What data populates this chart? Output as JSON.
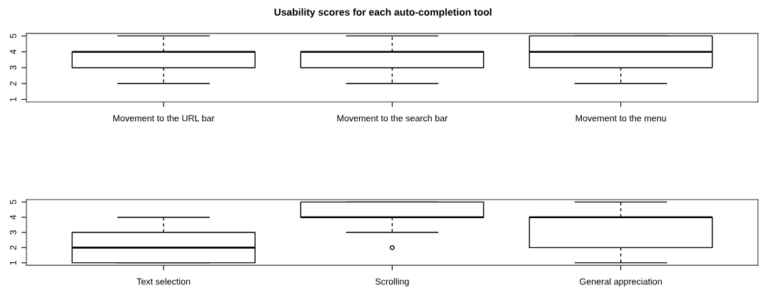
{
  "chart_data": [
    {
      "type": "box",
      "title": "Usability scores for each auto-completion tool",
      "categories": [
        "Movement to the URL bar",
        "Movement to the search bar",
        "Movement to the menu"
      ],
      "boxes": [
        {
          "low": 2,
          "q1": 3,
          "median": 4,
          "q3": 4,
          "high": 5
        },
        {
          "low": 2,
          "q1": 3,
          "median": 4,
          "q3": 4,
          "high": 5
        },
        {
          "low": 2,
          "q1": 3,
          "median": 4,
          "q3": 5,
          "high": 5
        }
      ],
      "ylim": [
        0.84,
        5.16
      ],
      "yticks": [
        1,
        2,
        3,
        4,
        5
      ],
      "grid": false,
      "legend": false
    },
    {
      "type": "box",
      "categories": [
        "Text selection",
        "Scrolling",
        "General appreciation"
      ],
      "boxes": [
        {
          "low": 1,
          "q1": 1,
          "median": 2,
          "q3": 3,
          "high": 4
        },
        {
          "low": 3,
          "q1": 4,
          "median": 4,
          "q3": 5,
          "high": 5,
          "outliers": [
            2
          ]
        },
        {
          "low": 1,
          "q1": 2,
          "median": 4,
          "q3": 4,
          "high": 5
        }
      ],
      "ylim": [
        0.84,
        5.16
      ],
      "yticks": [
        1,
        2,
        3,
        4,
        5
      ],
      "grid": false,
      "legend": false
    }
  ]
}
